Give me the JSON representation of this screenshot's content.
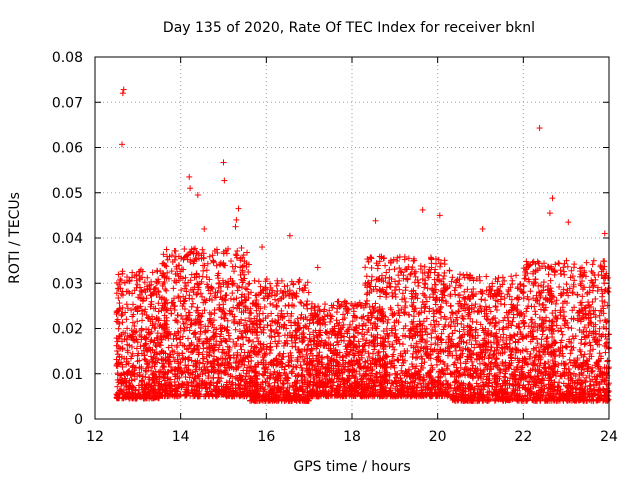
{
  "chart_data": {
    "type": "scatter",
    "title": "Day 135 of 2020, Rate Of TEC Index for receiver bknl",
    "xlabel": "GPS time / hours",
    "ylabel": "ROTI / TECUs",
    "xlim": [
      12,
      24
    ],
    "ylim": [
      0,
      0.08
    ],
    "grid": true,
    "marker": "+",
    "series_color": "#ff0000",
    "xticks": [
      "12",
      "14",
      "16",
      "18",
      "20",
      "22",
      "24"
    ],
    "yticks": [
      "0",
      "0.01",
      "0.02",
      "0.03",
      "0.04",
      "0.05",
      "0.06",
      "0.07",
      "0.08"
    ],
    "series": [
      {
        "points": [
          [
            12.65,
            0.072
          ],
          [
            12.67,
            0.0728
          ],
          [
            12.63,
            0.0607
          ],
          [
            22.38,
            0.0643
          ],
          [
            15.0,
            0.0567
          ],
          [
            15.02,
            0.0527
          ],
          [
            14.2,
            0.0535
          ],
          [
            14.22,
            0.051
          ],
          [
            14.4,
            0.0495
          ],
          [
            15.35,
            0.0465
          ],
          [
            15.3,
            0.044
          ],
          [
            15.28,
            0.0425
          ],
          [
            19.65,
            0.0462
          ],
          [
            20.05,
            0.045
          ],
          [
            21.05,
            0.042
          ],
          [
            22.68,
            0.0488
          ],
          [
            22.62,
            0.0455
          ],
          [
            23.05,
            0.0435
          ],
          [
            23.9,
            0.041
          ],
          [
            18.55,
            0.0438
          ],
          [
            16.55,
            0.0405
          ],
          [
            14.55,
            0.042
          ],
          [
            17.2,
            0.0335
          ],
          [
            15.9,
            0.038
          ]
        ]
      }
    ],
    "dense_band": [
      {
        "x_from": 12.5,
        "x_to": 13.5,
        "y_min": 0.0045,
        "y_max": 0.033
      },
      {
        "x_from": 13.5,
        "x_to": 15.6,
        "y_min": 0.005,
        "y_max": 0.038
      },
      {
        "x_from": 15.6,
        "x_to": 17.0,
        "y_min": 0.004,
        "y_max": 0.031
      },
      {
        "x_from": 17.0,
        "x_to": 18.3,
        "y_min": 0.005,
        "y_max": 0.026
      },
      {
        "x_from": 18.3,
        "x_to": 20.3,
        "y_min": 0.005,
        "y_max": 0.036
      },
      {
        "x_from": 20.3,
        "x_to": 22.0,
        "y_min": 0.004,
        "y_max": 0.032
      },
      {
        "x_from": 22.0,
        "x_to": 24.0,
        "y_min": 0.004,
        "y_max": 0.035
      }
    ]
  }
}
